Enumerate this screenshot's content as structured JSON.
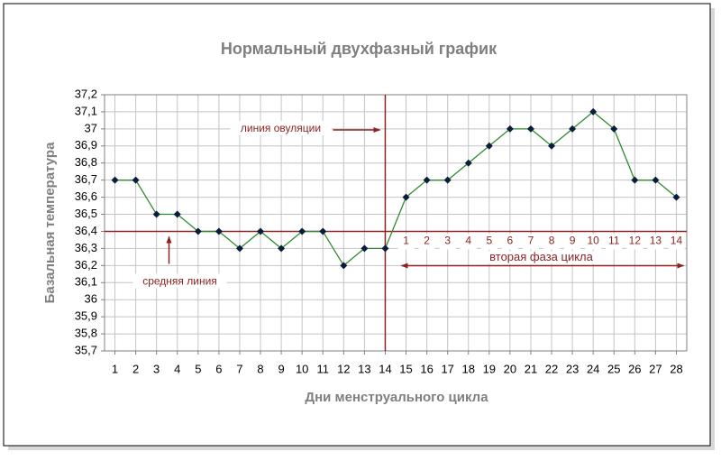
{
  "chart_data": {
    "type": "line",
    "title": "Нормальный двухфазный график",
    "x_label": "Дни менструального цикла",
    "y_label": "Базальная температура",
    "x": [
      1,
      2,
      3,
      4,
      5,
      6,
      7,
      8,
      9,
      10,
      11,
      12,
      13,
      14,
      15,
      16,
      17,
      18,
      19,
      20,
      21,
      22,
      23,
      24,
      25,
      26,
      27,
      28
    ],
    "values": [
      36.7,
      36.7,
      36.5,
      36.5,
      36.4,
      36.4,
      36.3,
      36.4,
      36.3,
      36.4,
      36.4,
      36.2,
      36.3,
      36.3,
      36.6,
      36.7,
      36.7,
      36.8,
      36.9,
      37.0,
      37.0,
      36.9,
      37.0,
      37.1,
      37.0,
      36.7,
      36.7,
      36.6
    ],
    "color": "#2e8b2e",
    "marker_color": "#0a1e3c",
    "xlim": [
      0.5,
      28.5
    ],
    "xticks": [
      1,
      2,
      3,
      4,
      5,
      6,
      7,
      8,
      9,
      10,
      11,
      12,
      13,
      14,
      15,
      16,
      17,
      18,
      19,
      20,
      21,
      22,
      23,
      24,
      25,
      26,
      27,
      28
    ],
    "ylim": [
      35.7,
      37.2
    ],
    "yticks": [
      {
        "value": 35.7,
        "label": "35,7"
      },
      {
        "value": 35.8,
        "label": "35,8"
      },
      {
        "value": 35.9,
        "label": "35,9"
      },
      36,
      {
        "value": 36.1,
        "label": "36,1"
      },
      {
        "value": 36.2,
        "label": "36,2"
      },
      {
        "value": 36.3,
        "label": "36,3"
      },
      {
        "value": 36.4,
        "label": "36,4"
      },
      {
        "value": 36.5,
        "label": "36,5"
      },
      {
        "value": 36.6,
        "label": "36,6"
      },
      {
        "value": 36.7,
        "label": "36,7"
      },
      {
        "value": 36.8,
        "label": "36,8"
      },
      {
        "value": 36.9,
        "label": "36,9"
      },
      37,
      {
        "value": 37.1,
        "label": "37,1"
      },
      {
        "value": 37.2,
        "label": "37,2"
      }
    ],
    "grid": true,
    "ref_color": "#8b2323",
    "hline": {
      "value": 36.4,
      "label": "средняя линия"
    },
    "vline": {
      "value": 14,
      "label": "линия овуляции"
    },
    "phase2": {
      "label": "вторая фаза цикла",
      "from": 15,
      "to": 28,
      "days": [
        1,
        2,
        3,
        4,
        5,
        6,
        7,
        8,
        9,
        10,
        11,
        12,
        13,
        14
      ]
    }
  }
}
